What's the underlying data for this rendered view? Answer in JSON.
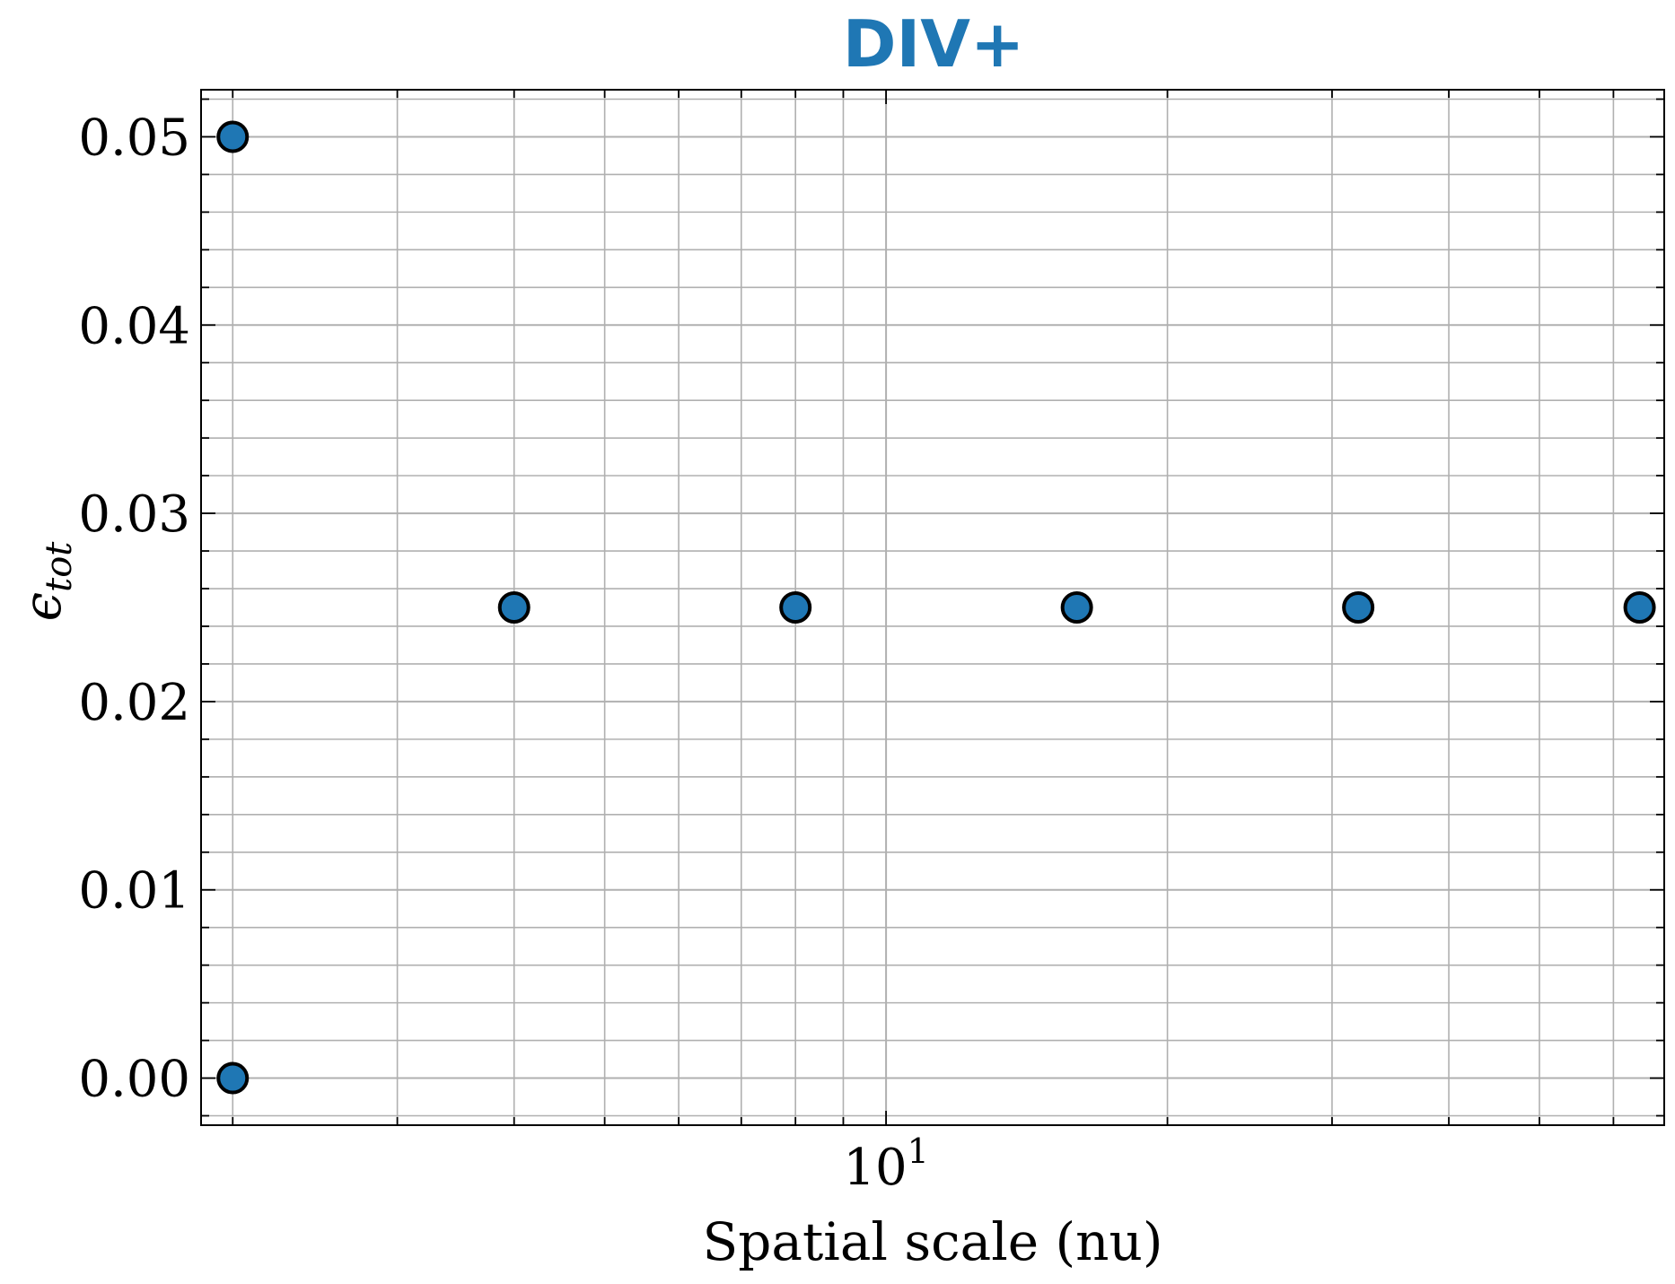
{
  "chart_data": {
    "type": "scatter",
    "title": "DIV+",
    "xlabel": "Spatial scale (nu)",
    "ylabel_base": "ϵ",
    "ylabel_sub": "tot",
    "x_scale": "log",
    "xlim": [
      1.85,
      68
    ],
    "ylim": [
      -0.0025,
      0.0525
    ],
    "x_tick_labels": [
      {
        "value": 10,
        "base": "10",
        "exp": "1"
      }
    ],
    "y_ticks": [
      0.0,
      0.01,
      0.02,
      0.03,
      0.04,
      0.05
    ],
    "y_tick_labels": [
      "0.00",
      "0.01",
      "0.02",
      "0.03",
      "0.04",
      "0.05"
    ],
    "grid": true,
    "marker_color": "#1f77b4",
    "marker_edge_color": "#000000",
    "title_color": "#1f77b4",
    "points": [
      {
        "x": 2,
        "y": 0.05
      },
      {
        "x": 2,
        "y": 0.0
      },
      {
        "x": 4,
        "y": 0.025
      },
      {
        "x": 8,
        "y": 0.025
      },
      {
        "x": 16,
        "y": 0.025
      },
      {
        "x": 32,
        "y": 0.025
      },
      {
        "x": 64,
        "y": 0.025
      }
    ]
  }
}
